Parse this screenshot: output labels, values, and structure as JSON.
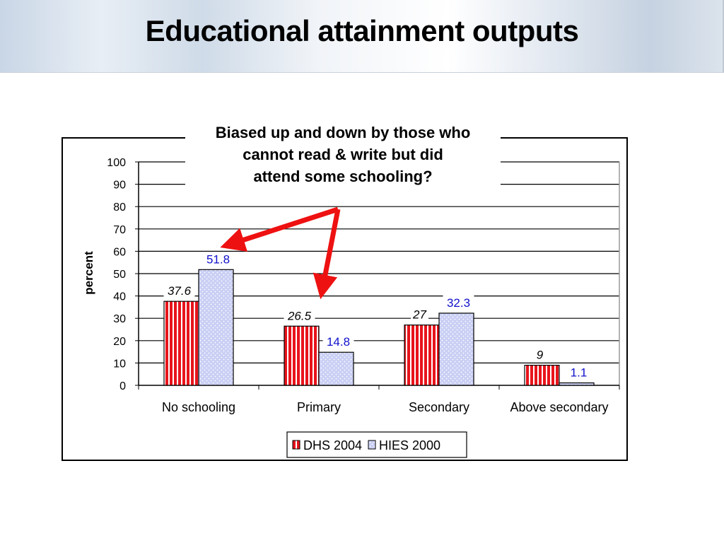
{
  "slide": {
    "title": "Educational attainment outputs"
  },
  "callout": {
    "lines": [
      "Biased up and down by those who",
      "cannot read & write but did",
      "attend some schooling?"
    ]
  },
  "colors": {
    "dhs": "#e8141b",
    "hies": "#c9cff4",
    "arrow": "#ee1111",
    "hies_label": "#1010cc"
  },
  "chart_data": {
    "type": "bar",
    "ylabel": "percent",
    "xlabel": "",
    "ylim": [
      0,
      100
    ],
    "yticks": [
      0,
      10,
      20,
      30,
      40,
      50,
      60,
      70,
      80,
      90,
      100
    ],
    "grid": true,
    "legend_position": "bottom",
    "categories": [
      "No schooling",
      "Primary",
      "Secondary",
      "Above secondary"
    ],
    "series": [
      {
        "name": "DHS 2004",
        "values": [
          37.6,
          26.5,
          27,
          9
        ],
        "labels": [
          "37.6",
          "26.5",
          "27",
          "9"
        ]
      },
      {
        "name": "HIES 2000",
        "values": [
          51.8,
          14.8,
          32.3,
          1.1
        ],
        "labels": [
          "51.8",
          "14.8",
          "32.3",
          "1.1"
        ]
      }
    ]
  }
}
